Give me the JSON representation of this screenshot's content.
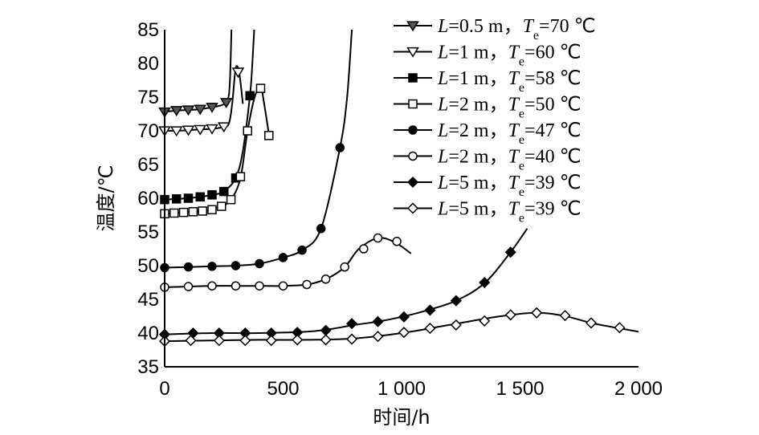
{
  "chart_data": {
    "type": "line",
    "title": "",
    "xlabel": "时间/h",
    "ylabel": "温度/℃",
    "xlim": [
      0,
      2000
    ],
    "ylim": [
      35,
      85
    ],
    "xticks": [
      {
        "value": 0,
        "label": "0"
      },
      {
        "value": 500,
        "label": "500"
      },
      {
        "value": 1000,
        "label": "1 000"
      },
      {
        "value": 1500,
        "label": "1 500"
      },
      {
        "value": 2000,
        "label": "2 000"
      }
    ],
    "yticks": [
      {
        "value": 35,
        "label": "35"
      },
      {
        "value": 40,
        "label": "40"
      },
      {
        "value": 45,
        "label": "45"
      },
      {
        "value": 50,
        "label": "50"
      },
      {
        "value": 55,
        "label": "55"
      },
      {
        "value": 60,
        "label": "60"
      },
      {
        "value": 65,
        "label": "65"
      },
      {
        "value": 70,
        "label": "70"
      },
      {
        "value": 75,
        "label": "75"
      },
      {
        "value": 80,
        "label": "80"
      },
      {
        "value": 85,
        "label": "85"
      }
    ],
    "grid": false,
    "legend_position": "top-right",
    "series": [
      {
        "legend": {
          "L": "0.5 m",
          "Te": "70 ℃"
        },
        "marker": "triangle-down-filled",
        "line": [
          [
            0,
            72.8
          ],
          [
            50,
            73.0
          ],
          [
            100,
            73.1
          ],
          [
            150,
            73.2
          ],
          [
            200,
            73.5
          ],
          [
            240,
            73.8
          ],
          [
            265,
            74.5
          ],
          [
            275,
            77
          ],
          [
            282,
            85
          ]
        ],
        "points": [
          [
            0,
            72.8
          ],
          [
            50,
            73.0
          ],
          [
            100,
            73.1
          ],
          [
            150,
            73.2
          ],
          [
            200,
            73.5
          ],
          [
            260,
            74.2
          ]
        ]
      },
      {
        "legend": {
          "L": "1 m",
          "Te": "60 ℃"
        },
        "marker": "triangle-down-open",
        "line": [
          [
            0,
            70.0
          ],
          [
            50,
            70.0
          ],
          [
            100,
            70.1
          ],
          [
            150,
            70.2
          ],
          [
            200,
            70.3
          ],
          [
            240,
            70.5
          ],
          [
            270,
            71.0
          ],
          [
            285,
            74
          ],
          [
            300,
            79.3
          ],
          [
            315,
            78.5
          ],
          [
            330,
            74
          ]
        ],
        "points": [
          [
            0,
            70.0
          ],
          [
            50,
            70.0
          ],
          [
            100,
            70.1
          ],
          [
            150,
            70.2
          ],
          [
            200,
            70.3
          ],
          [
            250,
            70.6
          ],
          [
            310,
            78.7
          ]
        ]
      },
      {
        "legend": {
          "L": "1 m",
          "Te": "58 ℃"
        },
        "marker": "square-filled",
        "line": [
          [
            0,
            59.8
          ],
          [
            50,
            59.9
          ],
          [
            100,
            60.0
          ],
          [
            150,
            60.2
          ],
          [
            200,
            60.5
          ],
          [
            250,
            61.0
          ],
          [
            300,
            63
          ],
          [
            330,
            67
          ],
          [
            360,
            75.2
          ],
          [
            370,
            80
          ],
          [
            378,
            85
          ]
        ],
        "points": [
          [
            0,
            59.8
          ],
          [
            50,
            59.9
          ],
          [
            100,
            60.0
          ],
          [
            150,
            60.2
          ],
          [
            200,
            60.5
          ],
          [
            250,
            61.0
          ],
          [
            300,
            63.0
          ],
          [
            360,
            75.2
          ]
        ]
      },
      {
        "legend": {
          "L": "2 m",
          "Te": "50 ℃"
        },
        "marker": "square-open",
        "line": [
          [
            0,
            57.7
          ],
          [
            40,
            57.8
          ],
          [
            80,
            57.9
          ],
          [
            120,
            58.0
          ],
          [
            160,
            58.1
          ],
          [
            200,
            58.3
          ],
          [
            240,
            58.8
          ],
          [
            280,
            59.8
          ],
          [
            320,
            63
          ],
          [
            350,
            70
          ],
          [
            380,
            75
          ],
          [
            405,
            76.5
          ],
          [
            420,
            74
          ],
          [
            440,
            69.5
          ]
        ],
        "points": [
          [
            0,
            57.7
          ],
          [
            40,
            57.8
          ],
          [
            80,
            57.9
          ],
          [
            120,
            58.0
          ],
          [
            160,
            58.1
          ],
          [
            200,
            58.3
          ],
          [
            240,
            58.8
          ],
          [
            280,
            59.8
          ],
          [
            320,
            63.2
          ],
          [
            350,
            70.0
          ],
          [
            405,
            76.3
          ],
          [
            440,
            69.3
          ]
        ]
      },
      {
        "legend": {
          "L": "2 m",
          "Te": "47 ℃"
        },
        "marker": "circle-filled",
        "line": [
          [
            0,
            49.7
          ],
          [
            100,
            49.8
          ],
          [
            200,
            49.9
          ],
          [
            300,
            50.0
          ],
          [
            400,
            50.3
          ],
          [
            500,
            51.2
          ],
          [
            580,
            52.3
          ],
          [
            660,
            55.5
          ],
          [
            740,
            67.5
          ],
          [
            770,
            75
          ],
          [
            790,
            85
          ]
        ],
        "points": [
          [
            0,
            49.7
          ],
          [
            100,
            49.8
          ],
          [
            200,
            49.9
          ],
          [
            300,
            50.0
          ],
          [
            400,
            50.3
          ],
          [
            500,
            51.2
          ],
          [
            580,
            52.3
          ],
          [
            660,
            55.5
          ],
          [
            740,
            67.5
          ]
        ]
      },
      {
        "legend": {
          "L": "2 m",
          "Te": "40 ℃"
        },
        "marker": "circle-open",
        "line": [
          [
            0,
            46.8
          ],
          [
            100,
            46.9
          ],
          [
            200,
            47.0
          ],
          [
            300,
            47.0
          ],
          [
            400,
            47.0
          ],
          [
            500,
            47.0
          ],
          [
            600,
            47.2
          ],
          [
            680,
            48.0
          ],
          [
            760,
            49.8
          ],
          [
            820,
            52.5
          ],
          [
            900,
            54.1
          ],
          [
            970,
            53.5
          ],
          [
            1040,
            51.8
          ]
        ],
        "points": [
          [
            0,
            46.8
          ],
          [
            100,
            46.9
          ],
          [
            200,
            47.0
          ],
          [
            300,
            47.0
          ],
          [
            400,
            47.0
          ],
          [
            500,
            47.0
          ],
          [
            600,
            47.2
          ],
          [
            680,
            48.0
          ],
          [
            760,
            49.8
          ],
          [
            840,
            52.5
          ],
          [
            900,
            54.1
          ],
          [
            980,
            53.6
          ]
        ]
      },
      {
        "legend": {
          "L": "5 m",
          "Te": "39 ℃"
        },
        "marker": "diamond-filled",
        "line": [
          [
            0,
            39.8
          ],
          [
            200,
            40.0
          ],
          [
            400,
            40.0
          ],
          [
            600,
            40.2
          ],
          [
            700,
            40.6
          ],
          [
            800,
            41.2
          ],
          [
            900,
            41.7
          ],
          [
            1000,
            42.4
          ],
          [
            1100,
            43.3
          ],
          [
            1230,
            44.8
          ],
          [
            1350,
            47.4
          ],
          [
            1460,
            52
          ],
          [
            1530,
            55.5
          ]
        ],
        "points": [
          [
            0,
            39.8
          ],
          [
            120,
            40.0
          ],
          [
            230,
            40.0
          ],
          [
            340,
            40.0
          ],
          [
            450,
            40.0
          ],
          [
            560,
            40.1
          ],
          [
            680,
            40.4
          ],
          [
            790,
            41.4
          ],
          [
            900,
            41.7
          ],
          [
            1010,
            42.4
          ],
          [
            1120,
            43.4
          ],
          [
            1230,
            44.8
          ],
          [
            1350,
            47.5
          ],
          [
            1460,
            52.0
          ]
        ]
      },
      {
        "legend": {
          "L": "5 m",
          "Te": "39 ℃"
        },
        "marker": "diamond-open",
        "line": [
          [
            0,
            38.8
          ],
          [
            200,
            38.9
          ],
          [
            400,
            39.0
          ],
          [
            600,
            39.0
          ],
          [
            800,
            39.2
          ],
          [
            1000,
            40.0
          ],
          [
            1200,
            41.2
          ],
          [
            1400,
            42.4
          ],
          [
            1560,
            43.0
          ],
          [
            1680,
            42.6
          ],
          [
            1800,
            41.5
          ],
          [
            1920,
            40.7
          ],
          [
            2000,
            40.2
          ]
        ],
        "points": [
          [
            0,
            38.8
          ],
          [
            110,
            38.9
          ],
          [
            230,
            38.9
          ],
          [
            340,
            38.9
          ],
          [
            450,
            38.9
          ],
          [
            560,
            39.0
          ],
          [
            680,
            39.0
          ],
          [
            790,
            39.1
          ],
          [
            900,
            39.5
          ],
          [
            1010,
            40.1
          ],
          [
            1120,
            40.7
          ],
          [
            1230,
            41.2
          ],
          [
            1350,
            41.8
          ],
          [
            1460,
            42.7
          ],
          [
            1570,
            43.0
          ],
          [
            1690,
            42.6
          ],
          [
            1800,
            41.5
          ],
          [
            1920,
            40.8
          ]
        ]
      }
    ]
  }
}
